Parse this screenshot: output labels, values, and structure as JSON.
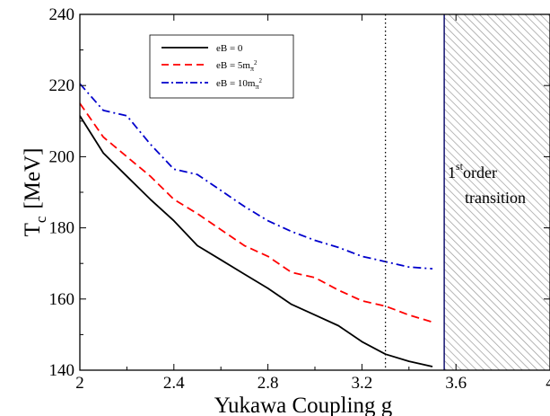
{
  "chart_data": {
    "type": "line",
    "xlabel": "Yukawa Coupling g",
    "ylabel_main": "T",
    "ylabel_sub": "c",
    "ylabel_unit": "[MeV]",
    "xlim": [
      2.0,
      4.0
    ],
    "ylim": [
      140,
      240
    ],
    "xticks": [
      2.0,
      2.4,
      2.8,
      3.2,
      3.6,
      4.0
    ],
    "xtick_labels": [
      "2",
      "2.4",
      "2.8",
      "3.2",
      "3.6",
      "4"
    ],
    "yticks": [
      140,
      160,
      180,
      200,
      220,
      240
    ],
    "ytick_labels": [
      "140",
      "160",
      "180",
      "200",
      "220",
      "240"
    ],
    "grid": false,
    "legend_placement": "top-left",
    "series": [
      {
        "legend_label": "eB = 0",
        "color": "#000000",
        "dash": "solid",
        "x": [
          2.0,
          2.1,
          2.2,
          2.3,
          2.4,
          2.5,
          2.6,
          2.7,
          2.8,
          2.9,
          3.0,
          3.1,
          3.2,
          3.3,
          3.4,
          3.5
        ],
        "y": [
          211.5,
          201.0,
          194.5,
          188.0,
          182.0,
          175.0,
          171.0,
          167.0,
          163.0,
          158.5,
          155.5,
          152.5,
          148.0,
          144.5,
          142.5,
          141.0
        ]
      },
      {
        "legend_main": "eB = 5m",
        "legend_sub": "π",
        "legend_sup": "2",
        "color": "#ff0000",
        "dash": "dashed",
        "x": [
          2.0,
          2.1,
          2.2,
          2.3,
          2.4,
          2.5,
          2.6,
          2.7,
          2.8,
          2.9,
          3.0,
          3.1,
          3.2,
          3.3,
          3.4,
          3.5
        ],
        "y": [
          215.0,
          205.5,
          200.0,
          194.5,
          188.0,
          184.0,
          179.5,
          175.0,
          172.0,
          167.5,
          166.0,
          162.5,
          159.5,
          158.0,
          155.5,
          153.5
        ]
      },
      {
        "legend_main": "eB = 10m",
        "legend_sub": "π",
        "legend_sup": "2",
        "color": "#0000cc",
        "dash": "dashdot",
        "x": [
          2.0,
          2.1,
          2.2,
          2.3,
          2.4,
          2.5,
          2.6,
          2.7,
          2.8,
          2.9,
          3.0,
          3.1,
          3.2,
          3.3,
          3.4,
          3.5
        ],
        "y": [
          220.5,
          213.0,
          211.5,
          203.5,
          196.5,
          195.0,
          190.5,
          186.0,
          182.0,
          179.0,
          176.5,
          174.5,
          172.0,
          170.5,
          169.0,
          168.5
        ]
      }
    ],
    "vertical_line_dotted_x": 3.3,
    "vertical_line_solid_x": 3.55,
    "hatched_region": {
      "x_from": 3.55,
      "x_to": 4.0
    },
    "annotation": {
      "line1_prefix": "1",
      "line1_sup": "st",
      "line1_rest": "order",
      "line2": "transition"
    }
  }
}
